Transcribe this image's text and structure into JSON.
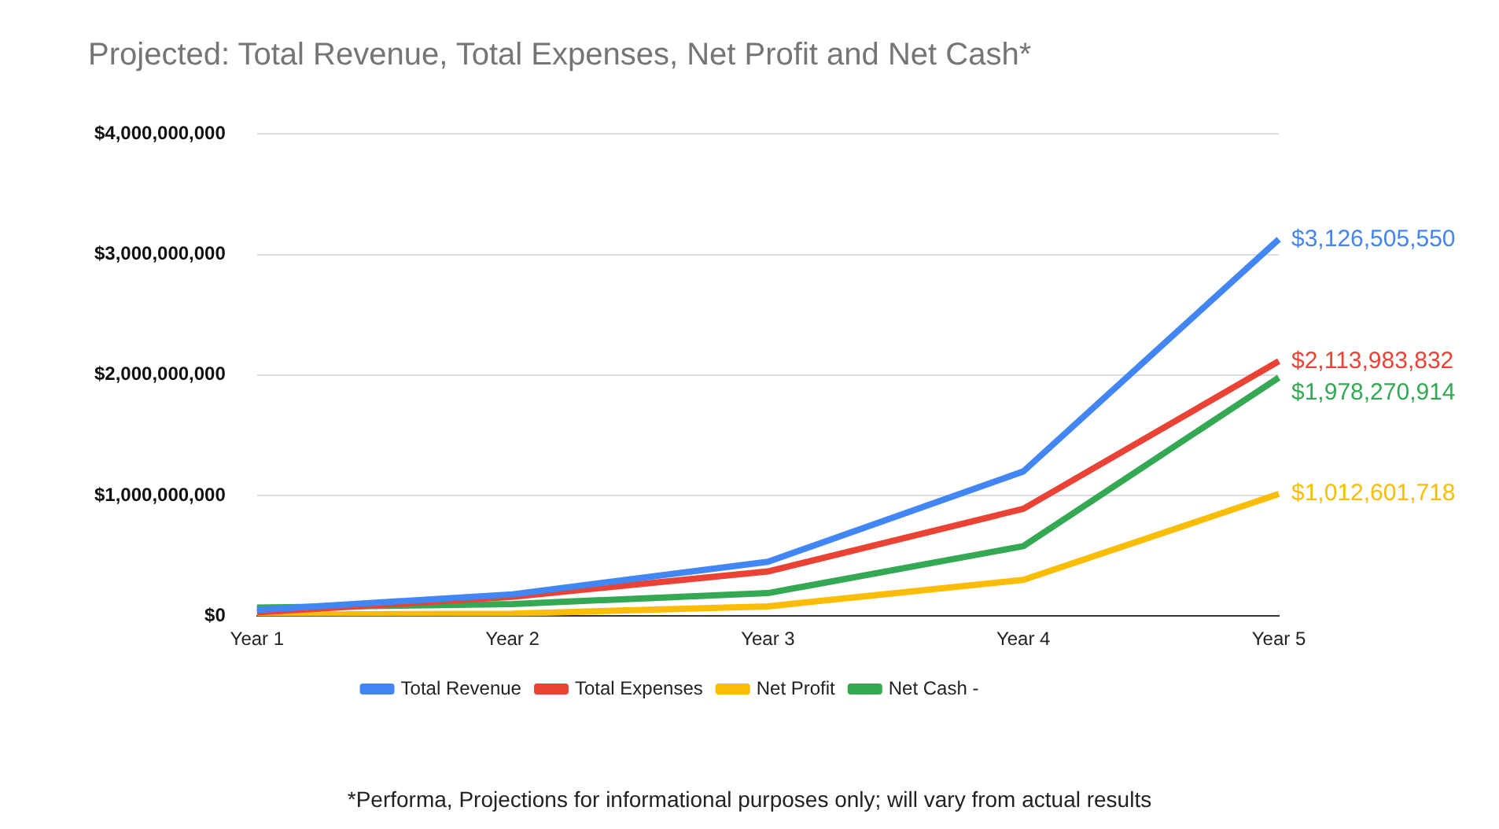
{
  "chart_data": {
    "type": "line",
    "title": "Projected: Total Revenue, Total Expenses, Net Profit and Net Cash*",
    "categories": [
      "Year 1",
      "Year 2",
      "Year 3",
      "Year 4",
      "Year 5"
    ],
    "series": [
      {
        "name": "Total Revenue",
        "color": "#4285f4",
        "values": [
          50000000,
          180000000,
          450000000,
          1200000000,
          3126505550
        ],
        "value_labels": [
          null,
          null,
          null,
          null,
          "$3,126,505,550"
        ]
      },
      {
        "name": "Total Expenses",
        "color": "#ea4335",
        "values": [
          30000000,
          160000000,
          370000000,
          890000000,
          2113983832
        ],
        "value_labels": [
          null,
          null,
          null,
          null,
          "$2,113,983,832"
        ]
      },
      {
        "name": "Net Profit",
        "color": "#fbbc04",
        "values": [
          10000000,
          20000000,
          80000000,
          300000000,
          1012601718
        ],
        "value_labels": [
          null,
          null,
          null,
          null,
          "$1,012,601,718"
        ]
      },
      {
        "name": "Net Cash -",
        "color": "#34a853",
        "values": [
          70000000,
          100000000,
          190000000,
          580000000,
          1978270914
        ],
        "value_labels": [
          null,
          null,
          null,
          null,
          "$1,978,270,914"
        ]
      }
    ],
    "ylim": [
      0,
      4000000000
    ],
    "yticks": [
      {
        "value": 0,
        "label": "$0"
      },
      {
        "value": 1000000000,
        "label": "$1,000,000,000"
      },
      {
        "value": 2000000000,
        "label": "$2,000,000,000"
      },
      {
        "value": 3000000000,
        "label": "$3,000,000,000"
      },
      {
        "value": 4000000000,
        "label": "$4,000,000,000"
      }
    ],
    "grid": "y",
    "legend": "bottom",
    "marker": "none",
    "line_style": "solid",
    "annotations": [
      "*Performa, Projections for informational purposes only; will vary from actual results"
    ]
  }
}
